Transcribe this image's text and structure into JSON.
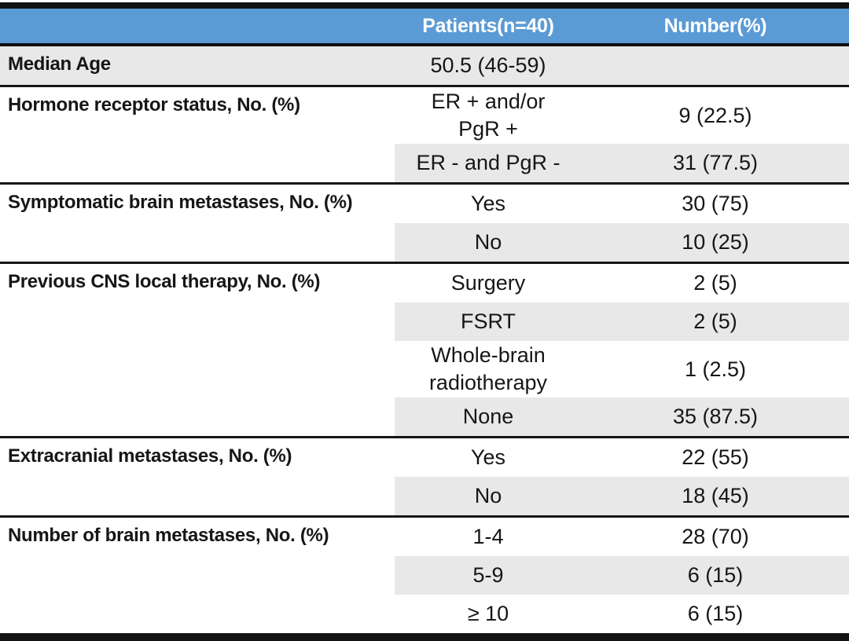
{
  "table": {
    "header": {
      "col1": "",
      "col2": "Patients(n=40)",
      "col3": "Number(%)"
    },
    "groups": [
      {
        "label": "Median Age",
        "rows": [
          {
            "value": "50.5 (46-59)",
            "number": ""
          }
        ]
      },
      {
        "label": "Hormone receptor status, No. (%)",
        "rows": [
          {
            "value": "ER + and/or\nPgR +",
            "number": "9 (22.5)"
          },
          {
            "value": "ER - and PgR -",
            "number": "31 (77.5)"
          }
        ]
      },
      {
        "label": "Symptomatic brain metastases, No. (%)",
        "rows": [
          {
            "value": "Yes",
            "number": "30 (75)"
          },
          {
            "value": "No",
            "number": "10 (25)"
          }
        ]
      },
      {
        "label": "Previous CNS local therapy, No. (%)",
        "rows": [
          {
            "value": "Surgery",
            "number": "2 (5)"
          },
          {
            "value": "FSRT",
            "number": "2 (5)"
          },
          {
            "value": "Whole-brain\nradiotherapy",
            "number": "1 (2.5)"
          },
          {
            "value": "None",
            "number": "35 (87.5)"
          }
        ]
      },
      {
        "label": "Extracranial metastases, No. (%)",
        "rows": [
          {
            "value": "Yes",
            "number": "22 (55)"
          },
          {
            "value": "No",
            "number": "18 (45)"
          }
        ]
      },
      {
        "label": "Number of brain metastases, No. (%)",
        "rows": [
          {
            "value": "1-4",
            "number": "28 (70)"
          },
          {
            "value": "5-9",
            "number": "6 (15)"
          },
          {
            "value": "≥ 10",
            "number": "6 (15)"
          }
        ]
      }
    ],
    "colors": {
      "header_bg": "#5B9BD5",
      "header_text": "#FFFFFF",
      "band_bg": "#E8E8E8",
      "rule": "#121212"
    }
  },
  "chart_data": {
    "type": "table",
    "columns": [
      "",
      "Patients(n=40)",
      "Number(%)"
    ],
    "rows": [
      [
        "Median Age",
        "50.5 (46-59)",
        ""
      ],
      [
        "Hormone receptor status, No. (%)",
        "ER + and/or PgR +",
        "9 (22.5)"
      ],
      [
        "",
        "ER - and PgR -",
        "31 (77.5)"
      ],
      [
        "Symptomatic brain metastases, No. (%)",
        "Yes",
        "30 (75)"
      ],
      [
        "",
        "No",
        "10 (25)"
      ],
      [
        "Previous CNS local therapy, No. (%)",
        "Surgery",
        "2 (5)"
      ],
      [
        "",
        "FSRT",
        "2 (5)"
      ],
      [
        "",
        "Whole-brain radiotherapy",
        "1 (2.5)"
      ],
      [
        "",
        "None",
        "35 (87.5)"
      ],
      [
        "Extracranial metastases, No. (%)",
        "Yes",
        "22 (55)"
      ],
      [
        "",
        "No",
        "18 (45)"
      ],
      [
        "Number of brain metastases, No. (%)",
        "1-4",
        "28 (70)"
      ],
      [
        "",
        "5-9",
        "6 (15)"
      ],
      [
        "",
        "≥ 10",
        "6 (15)"
      ]
    ]
  }
}
